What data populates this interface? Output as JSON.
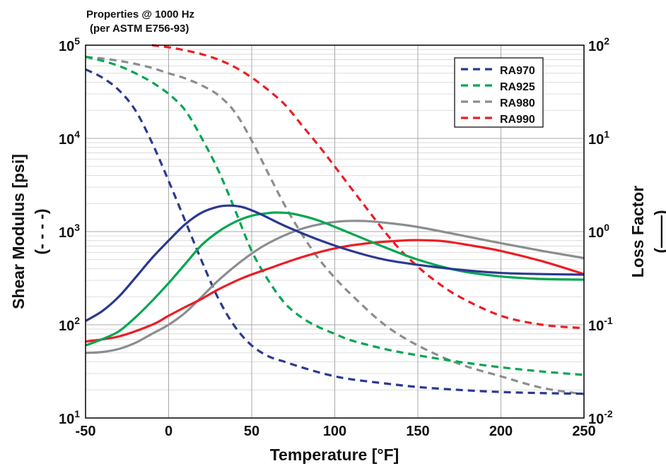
{
  "title": [
    "Properties @ 1000 Hz",
    "(per ASTM E756-93)"
  ],
  "chart_data": {
    "type": "line",
    "title": "Properties @ 1000 Hz (per ASTM E756-93)",
    "xlabel": "Temperature [°F]",
    "ylabel_left": [
      "Shear Modulus [psi]",
      "(- - - -)"
    ],
    "ylabel_right": [
      "Loss Factor",
      "(——)"
    ],
    "xlim": [
      -50,
      250
    ],
    "ylim_left": [
      10,
      100000
    ],
    "ylim_right": [
      0.01,
      100
    ],
    "y_scale": "log",
    "grid": true,
    "legend_position": "top-right",
    "x_ticks": [
      "-50",
      "0",
      "50",
      "100",
      "150",
      "200",
      "250"
    ],
    "y_ticks_left": [
      {
        "base": "10",
        "exp": "1"
      },
      {
        "base": "10",
        "exp": "2"
      },
      {
        "base": "10",
        "exp": "3"
      },
      {
        "base": "10",
        "exp": "4"
      },
      {
        "base": "10",
        "exp": "5"
      }
    ],
    "y_ticks_right": [
      {
        "base": "10",
        "exp": "-2"
      },
      {
        "base": "10",
        "exp": "-1"
      },
      {
        "base": "10",
        "exp": "0"
      },
      {
        "base": "10",
        "exp": "1"
      },
      {
        "base": "10",
        "exp": "2"
      }
    ],
    "series": [
      {
        "name": "RA970",
        "color": "#2b3990",
        "shear_modulus": {
          "x": [
            -50,
            -40,
            -30,
            -20,
            -10,
            0,
            10,
            20,
            30,
            40,
            50,
            60,
            70,
            80,
            90,
            100,
            110,
            130,
            150,
            175,
            200,
            225,
            250
          ],
          "y": [
            55000,
            45000,
            33000,
            20000,
            9000,
            3500,
            1300,
            480,
            190,
            95,
            60,
            46,
            40,
            35,
            31,
            28,
            26,
            23.5,
            21.5,
            20,
            19,
            18.5,
            18.2
          ]
        },
        "loss_factor": {
          "x": [
            -50,
            -40,
            -30,
            -20,
            -10,
            0,
            10,
            20,
            30,
            37,
            45,
            55,
            70,
            90,
            110,
            130,
            150,
            175,
            200,
            225,
            250
          ],
          "y": [
            0.11,
            0.14,
            0.2,
            0.32,
            0.52,
            0.8,
            1.2,
            1.6,
            1.85,
            1.9,
            1.82,
            1.55,
            1.15,
            0.82,
            0.62,
            0.5,
            0.44,
            0.39,
            0.36,
            0.35,
            0.345
          ]
        }
      },
      {
        "name": "RA925",
        "color": "#00a651",
        "shear_modulus": {
          "x": [
            -50,
            -40,
            -30,
            -20,
            -10,
            0,
            10,
            20,
            30,
            40,
            50,
            60,
            70,
            80,
            90,
            100,
            110,
            130,
            150,
            175,
            200,
            225,
            250
          ],
          "y": [
            75000,
            68000,
            60000,
            50000,
            40000,
            30000,
            20000,
            10000,
            4500,
            1700,
            620,
            300,
            170,
            120,
            95,
            80,
            68,
            55,
            47,
            40,
            35,
            31.5,
            29
          ]
        },
        "loss_factor": {
          "x": [
            -50,
            -40,
            -30,
            -20,
            -10,
            0,
            10,
            20,
            30,
            40,
            50,
            60,
            66,
            75,
            90,
            110,
            130,
            150,
            175,
            200,
            225,
            250
          ],
          "y": [
            0.06,
            0.07,
            0.085,
            0.12,
            0.18,
            0.28,
            0.45,
            0.72,
            1.0,
            1.27,
            1.48,
            1.58,
            1.6,
            1.55,
            1.32,
            0.95,
            0.68,
            0.5,
            0.38,
            0.33,
            0.31,
            0.305
          ]
        }
      },
      {
        "name": "RA980",
        "color": "#8a8d91",
        "shear_modulus": {
          "x": [
            -50,
            -40,
            -30,
            -20,
            -10,
            0,
            10,
            20,
            30,
            40,
            50,
            60,
            70,
            80,
            90,
            100,
            110,
            130,
            150,
            175,
            200,
            225,
            250
          ],
          "y": [
            75000,
            72000,
            68000,
            63000,
            57000,
            50000,
            44000,
            37000,
            29000,
            19000,
            9500,
            4200,
            1900,
            950,
            520,
            320,
            210,
            100,
            60,
            38,
            28,
            21,
            18
          ]
        },
        "loss_factor": {
          "x": [
            -50,
            -40,
            -30,
            -20,
            -10,
            0,
            10,
            20,
            30,
            45,
            60,
            80,
            100,
            117,
            135,
            150,
            175,
            200,
            225,
            250
          ],
          "y": [
            0.05,
            0.051,
            0.055,
            0.064,
            0.08,
            0.1,
            0.135,
            0.2,
            0.3,
            0.5,
            0.75,
            1.07,
            1.27,
            1.3,
            1.22,
            1.12,
            0.92,
            0.75,
            0.62,
            0.52
          ]
        }
      },
      {
        "name": "RA990",
        "color": "#ed1c24",
        "shear_modulus": {
          "x": [
            -10,
            0,
            10,
            20,
            30,
            40,
            50,
            60,
            70,
            80,
            90,
            100,
            110,
            120,
            130,
            140,
            150,
            160,
            175,
            200,
            225,
            250
          ],
          "y": [
            100000,
            95000,
            88000,
            80000,
            70000,
            58000,
            45000,
            33000,
            23000,
            14000,
            8500,
            5000,
            2900,
            1700,
            1000,
            620,
            420,
            300,
            200,
            125,
            100,
            92
          ]
        },
        "loss_factor": {
          "x": [
            -50,
            -30,
            -10,
            0,
            10,
            20,
            30,
            45,
            60,
            80,
            100,
            120,
            140,
            150,
            165,
            180,
            200,
            225,
            250
          ],
          "y": [
            0.066,
            0.075,
            0.1,
            0.125,
            0.155,
            0.19,
            0.24,
            0.32,
            0.4,
            0.53,
            0.66,
            0.75,
            0.8,
            0.81,
            0.79,
            0.72,
            0.62,
            0.48,
            0.35
          ]
        }
      }
    ]
  }
}
